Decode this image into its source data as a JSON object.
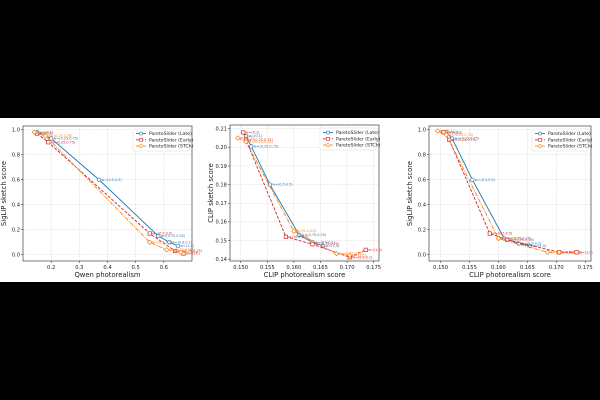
{
  "colors": {
    "late": "#1f77b4",
    "early": "#d62728",
    "stch": "#ff7f0e"
  },
  "chart_data": [
    {
      "type": "line",
      "xlabel": "Qwen photorealism",
      "ylabel": "SigLIP sketch score",
      "xlim": [
        0.1,
        0.7
      ],
      "ylim": [
        -0.05,
        1.03
      ],
      "xticks": [
        0.2,
        0.3,
        0.4,
        0.5,
        0.6
      ],
      "xtick_labels": [
        "0.2",
        "0.3",
        "0.4",
        "0.5",
        "0.6"
      ],
      "yticks": [
        0.0,
        0.2,
        0.4,
        0.6,
        0.8,
        1.0
      ],
      "ytick_labels": [
        "0.0",
        "0.2",
        "0.4",
        "0.6",
        "0.8",
        "1.0"
      ],
      "legend": [
        "ParetoSlider (Late)",
        "ParetoSlider (Early)",
        "ParetoSlider (STCh)"
      ],
      "series": [
        {
          "name": "ParetoSlider (Late)",
          "x": [
            0.15,
            0.2,
            0.37,
            0.58,
            0.62,
            0.65
          ],
          "y": [
            0.98,
            0.93,
            0.6,
            0.15,
            0.1,
            0.07
          ],
          "labels": [
            "w=(0,1)",
            "w=(0.25,0.75)",
            "w=(0.5,0.5)",
            "w=(0.75,0.25)",
            "w=(0.9,0.1)",
            "w=(1,0)"
          ]
        },
        {
          "name": "ParetoSlider (Early)",
          "x": [
            0.15,
            0.19,
            0.55,
            0.64,
            0.67
          ],
          "y": [
            0.97,
            0.9,
            0.17,
            0.03,
            0.01
          ],
          "labels": [
            "w=(0,1)",
            "w=(0.25,0.75)",
            "w=(0.5,0.5)",
            "w=(0.75,0.25)",
            "w=(1,0)"
          ]
        },
        {
          "name": "ParetoSlider (STCh)",
          "x": [
            0.14,
            0.18,
            0.55,
            0.61,
            0.66
          ],
          "y": [
            0.98,
            0.95,
            0.1,
            0.04,
            0.02
          ],
          "labels": [
            "w=(0,1)",
            "w=(0.25,0.75)",
            "w=(0.5,0.5)",
            "w=(0.75,0.25)",
            "w=(1,0)"
          ]
        }
      ]
    },
    {
      "type": "line",
      "xlabel": "CLIP photorealism score",
      "ylabel": "CLIP sketch score",
      "xlim": [
        0.148,
        0.176
      ],
      "ylim": [
        0.139,
        0.212
      ],
      "xticks": [
        0.15,
        0.155,
        0.16,
        0.165,
        0.17,
        0.175
      ],
      "xtick_labels": [
        "0.150",
        "0.155",
        "0.160",
        "0.165",
        "0.170",
        "0.175"
      ],
      "yticks": [
        0.14,
        0.15,
        0.16,
        0.17,
        0.18,
        0.19,
        0.2,
        0.21
      ],
      "ytick_labels": [
        "0.14",
        "0.15",
        "0.16",
        "0.17",
        "0.18",
        "0.19",
        "0.20",
        "0.21"
      ],
      "legend": [
        "ParetoSlider (Late)",
        "ParetoSlider (Early)",
        "ParetoSlider (STCh)"
      ],
      "series": [
        {
          "name": "ParetoSlider (Late)",
          "x": [
            0.151,
            0.152,
            0.1555,
            0.161,
            0.1635,
            0.1655
          ],
          "y": [
            0.206,
            0.2005,
            0.18,
            0.153,
            0.149,
            0.147
          ],
          "labels": [
            "w=(0,1)",
            "w=(0.25,0.75)",
            "w=(0.5,0.5)",
            "w=(0.75,0.25)",
            "w=(0.9,0.1)",
            "w=(1,0)"
          ]
        },
        {
          "name": "ParetoSlider (Early)",
          "x": [
            0.1505,
            0.151,
            0.1585,
            0.1635,
            0.1705,
            0.1735
          ],
          "y": [
            0.208,
            0.204,
            0.152,
            0.148,
            0.141,
            0.145
          ],
          "labels": [
            "w=(0,1)",
            "w=(0.25,0.75)",
            "w=(0.5,0.5)",
            "w=(0.75,0.25)",
            "w=(0.9,0.1)",
            "w=(1,0)"
          ]
        },
        {
          "name": "ParetoSlider (STCh)",
          "x": [
            0.1495,
            0.151,
            0.16,
            0.168,
            0.1705
          ],
          "y": [
            0.205,
            0.203,
            0.155,
            0.143,
            0.142
          ],
          "labels": [
            "w=(0,1)",
            "w=(0.25,0.75)",
            "w=(0.5,0.5)",
            "w=(0.75,0.25)",
            "w=(1,0)"
          ]
        }
      ]
    },
    {
      "type": "line",
      "xlabel": "CLIP photorealism score",
      "ylabel": "SigLIP sketch score",
      "xlim": [
        0.148,
        0.176
      ],
      "ylim": [
        -0.05,
        1.03
      ],
      "xticks": [
        0.15,
        0.155,
        0.16,
        0.165,
        0.17,
        0.175
      ],
      "xtick_labels": [
        "0.150",
        "0.155",
        "0.160",
        "0.165",
        "0.170",
        "0.175"
      ],
      "yticks": [
        0.0,
        0.2,
        0.4,
        0.6,
        0.8,
        1.0
      ],
      "ytick_labels": [
        "0.0",
        "0.2",
        "0.4",
        "0.6",
        "0.8",
        "1.0"
      ],
      "legend": [
        "ParetoSlider (Late)",
        "ParetoSlider (Early)",
        "ParetoSlider (STCh)"
      ],
      "series": [
        {
          "name": "ParetoSlider (Late)",
          "x": [
            0.151,
            0.152,
            0.1555,
            0.161,
            0.1635,
            0.1655
          ],
          "y": [
            0.98,
            0.93,
            0.6,
            0.13,
            0.09,
            0.07
          ],
          "labels": [
            "w=(0,1)",
            "w=(0.25,0.75)",
            "w=(0.5,0.5)",
            "w=(0.75,0.25)",
            "w=(0.9,0.1)",
            "w=(1,0)"
          ]
        },
        {
          "name": "ParetoSlider (Early)",
          "x": [
            0.1505,
            0.1515,
            0.1585,
            0.1615,
            0.1705,
            0.1735
          ],
          "y": [
            0.98,
            0.92,
            0.17,
            0.12,
            0.02,
            0.02
          ],
          "labels": [
            "w=(0,1)",
            "w=(0.25,0.75)",
            "w=(0.5,0.5)",
            "w=(0.75,0.25)",
            "w=(0.9,0.1)",
            "w=(1,0)"
          ]
        },
        {
          "name": "ParetoSlider (STCh)",
          "x": [
            0.1495,
            0.151,
            0.16,
            0.1685,
            0.1705
          ],
          "y": [
            0.99,
            0.96,
            0.13,
            0.02,
            0.02
          ],
          "labels": [
            "w=(0,1)",
            "w=(0.25,0.75)",
            "w=(0.5,0.5)",
            "w=(0.75,0.25)",
            "w=(1,0)"
          ]
        }
      ]
    }
  ]
}
